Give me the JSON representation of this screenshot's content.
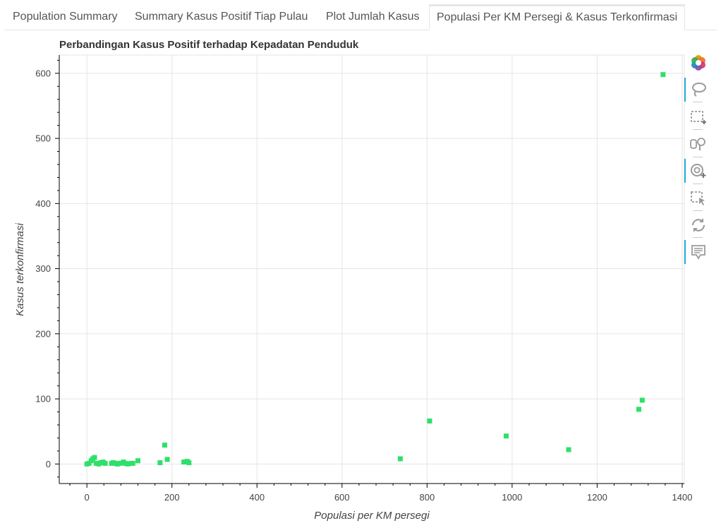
{
  "tabs": [
    {
      "label": "Population Summary",
      "active": false
    },
    {
      "label": "Summary Kasus Positif Tiap Pulau",
      "active": false
    },
    {
      "label": "Plot Jumlah Kasus",
      "active": false
    },
    {
      "label": "Populasi Per KM Persegi & Kasus Terkonfirmasi",
      "active": true
    }
  ],
  "toolbar": {
    "tools": [
      {
        "icon": "bokeh-logo-icon",
        "active": false
      },
      {
        "icon": "lasso-select-icon",
        "active": true
      },
      {
        "icon": "box-select-icon",
        "active": false
      },
      {
        "icon": "box-zoom-icon",
        "active": false
      },
      {
        "icon": "wheel-zoom-icon",
        "active": true
      },
      {
        "icon": "tap-select-icon",
        "active": false
      },
      {
        "icon": "reset-icon",
        "active": false
      },
      {
        "icon": "hover-icon",
        "active": true
      }
    ]
  },
  "chart_data": {
    "type": "scatter",
    "title": "Perbandingan Kasus Positif terhadap Kepadatan Penduduk",
    "xlabel": "Populasi per KM persegi",
    "ylabel": "Kasus terkonfirmasi",
    "xlim": [
      -65,
      1405
    ],
    "ylim": [
      -30,
      628
    ],
    "xticks": [
      0,
      200,
      400,
      600,
      800,
      1000,
      1200,
      1400
    ],
    "yticks": [
      0,
      100,
      200,
      300,
      400,
      500,
      600
    ],
    "grid": true,
    "marker_color": "#2ee06a",
    "x": [
      0,
      5,
      10,
      14,
      18,
      22,
      28,
      33,
      38,
      43,
      58,
      62,
      66,
      72,
      78,
      86,
      90,
      96,
      104,
      108,
      120,
      172,
      183,
      189,
      228,
      236,
      240,
      737,
      806,
      986,
      1133,
      1298,
      1306,
      1355
    ],
    "y": [
      0,
      1,
      5,
      8,
      10,
      1,
      0,
      2,
      3,
      1,
      1,
      2,
      1,
      0,
      1,
      3,
      1,
      0,
      1,
      1,
      5,
      2,
      29,
      7,
      3,
      4,
      2,
      8,
      66,
      43,
      22,
      84,
      98,
      598
    ]
  }
}
